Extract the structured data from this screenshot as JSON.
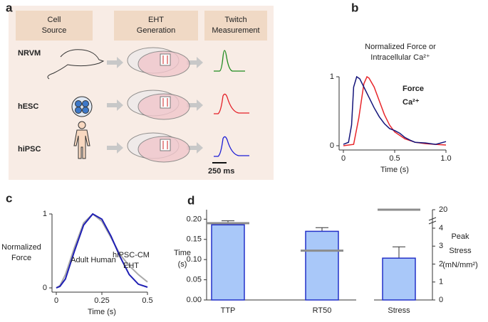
{
  "panel_labels": [
    "a",
    "b",
    "c",
    "d"
  ],
  "diagram": {
    "headers": [
      [
        "Cell",
        "Source"
      ],
      [
        "EHT",
        "Generation"
      ],
      [
        "Twitch",
        "Measurement"
      ]
    ],
    "rows": [
      {
        "label": "NRVM",
        "color": "#1f8b1f"
      },
      {
        "label": "hESC",
        "color": "#e41e26"
      },
      {
        "label": "hiPSC",
        "color": "#1c1cd6"
      }
    ],
    "scale_bar": "250 ms"
  },
  "chart_data": [
    {
      "type": "line",
      "title": [
        "Normalized Force or",
        "Intracellular Ca²⁺"
      ],
      "xlabel": "Time (s)",
      "xlim": [
        0,
        1
      ],
      "xticks": [
        0,
        0.5,
        {
          "value": 1,
          "label": "1.0"
        }
      ],
      "ylim": [
        0,
        1
      ],
      "yticks": [
        0,
        1
      ],
      "series": [
        {
          "name": "Force",
          "color": "#e8262b",
          "x": [
            0,
            0.1,
            0.15,
            0.2,
            0.23,
            0.25,
            0.3,
            0.35,
            0.4,
            0.45,
            0.5,
            0.6,
            0.7,
            0.8,
            0.9,
            1.0
          ],
          "values": [
            0,
            0.02,
            0.4,
            0.9,
            1.0,
            0.98,
            0.85,
            0.65,
            0.45,
            0.3,
            0.2,
            0.1,
            0.05,
            0.03,
            0.02,
            0.01
          ]
        },
        {
          "name": "Ca²⁺",
          "color": "#14147a",
          "x": [
            0,
            0.05,
            0.08,
            0.1,
            0.13,
            0.16,
            0.2,
            0.25,
            0.3,
            0.35,
            0.4,
            0.45,
            0.5,
            0.55,
            0.6,
            0.65,
            0.7,
            0.8,
            0.9,
            1.0
          ],
          "values": [
            0.02,
            0.05,
            0.3,
            0.85,
            1.0,
            0.97,
            0.85,
            0.7,
            0.55,
            0.42,
            0.32,
            0.25,
            0.22,
            0.18,
            0.12,
            0.08,
            0.05,
            0.04,
            0.02,
            0.06
          ]
        }
      ]
    },
    {
      "type": "line",
      "ylabel": [
        "Normalized",
        "Force"
      ],
      "xlabel": "Time (s)",
      "xlim": [
        0,
        0.5
      ],
      "xticks": [
        0,
        0.25,
        0.5
      ],
      "ylim": [
        0,
        1
      ],
      "yticks": [
        0,
        1
      ],
      "series": [
        {
          "name": [
            "Adult Human"
          ],
          "color": "#aaaaaa",
          "x": [
            0,
            0.02,
            0.05,
            0.1,
            0.15,
            0.2,
            0.25,
            0.3,
            0.35,
            0.4,
            0.45,
            0.5
          ],
          "values": [
            0,
            0.03,
            0.18,
            0.55,
            0.88,
            1.0,
            0.9,
            0.68,
            0.45,
            0.3,
            0.18,
            0.08
          ]
        },
        {
          "name": [
            "hiPSC-CM",
            "EHT"
          ],
          "color": "#1f1fb4",
          "x": [
            0,
            0.02,
            0.05,
            0.1,
            0.15,
            0.2,
            0.25,
            0.3,
            0.35,
            0.4,
            0.45,
            0.5
          ],
          "values": [
            0,
            0.02,
            0.12,
            0.5,
            0.85,
            1.0,
            0.93,
            0.7,
            0.42,
            0.18,
            0.05,
            0.01
          ]
        }
      ]
    },
    {
      "type": "bar",
      "categories": [
        "TTP",
        "RT50",
        "Stress"
      ],
      "values": [
        0.186,
        0.17,
        2.33
      ],
      "errors": [
        0.01,
        0.009,
        0.63
      ],
      "axes": [
        "y",
        "y",
        "y2"
      ],
      "reference": [
        0.19,
        0.122,
        20
      ],
      "color": "#a9c8f9",
      "edge_color": "#2330c8",
      "reference_color": "#8c8c8c",
      "ylabel": [
        "Time",
        "(s)"
      ],
      "y2label": [
        "Peak",
        "Stress",
        "(mN/mm²)"
      ],
      "ylim": [
        0,
        0.22
      ],
      "yticks": [
        {
          "value": 0,
          "label": "0.00"
        },
        {
          "value": 0.05,
          "label": "0.05"
        },
        {
          "value": 0.1,
          "label": "0.10"
        },
        {
          "value": 0.15,
          "label": "0.15"
        },
        {
          "value": 0.2,
          "label": "0.20"
        }
      ],
      "y2lim": [
        0,
        20
      ],
      "y2ticks": [
        0,
        1,
        2,
        3,
        4,
        20
      ],
      "y2_break": true
    }
  ]
}
